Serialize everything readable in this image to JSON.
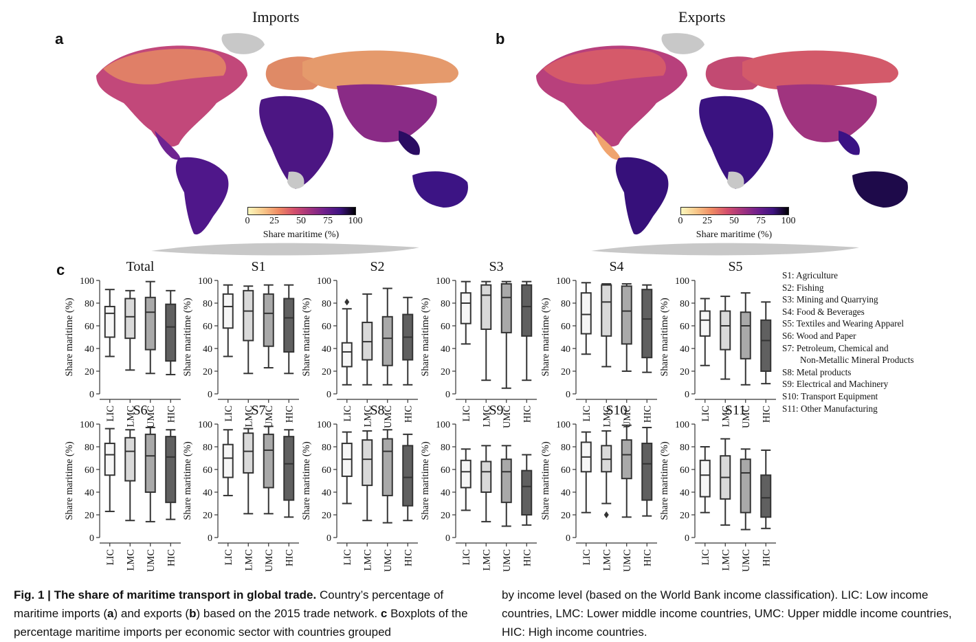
{
  "maps": {
    "imports": {
      "title": "Imports",
      "letter": "a"
    },
    "exports": {
      "title": "Exports",
      "letter": "b"
    },
    "colorbar": {
      "ticks": [
        "0",
        "25",
        "50",
        "75",
        "100"
      ],
      "label": "Share maritime (%)",
      "colors": [
        "#fcf8bd",
        "#f7c78a",
        "#ef8a63",
        "#d44f6c",
        "#a2337e",
        "#6f1f8c",
        "#3e1380",
        "#000004"
      ]
    }
  },
  "panel_c_letter": "c",
  "chart_data": {
    "type": "boxplot",
    "ylabel": "Share maritime (%)",
    "ylim": [
      0,
      100
    ],
    "yticks": [
      "0",
      "20",
      "40",
      "60",
      "80",
      "100"
    ],
    "categories": [
      "LIC",
      "LMC",
      "UMC",
      "HIC"
    ],
    "box_colors": [
      "#f6f6f6",
      "#d9d9d9",
      "#a9a9a9",
      "#606060"
    ],
    "panels": [
      {
        "title": "Total",
        "boxes": [
          {
            "whislo": 33,
            "q1": 50,
            "med": 71,
            "q3": 77,
            "whishi": 92
          },
          {
            "whislo": 21,
            "q1": 49,
            "med": 68,
            "q3": 84,
            "whishi": 91
          },
          {
            "whislo": 18,
            "q1": 39,
            "med": 72,
            "q3": 85,
            "whishi": 99
          },
          {
            "whislo": 17,
            "q1": 29,
            "med": 59,
            "q3": 79,
            "whishi": 91
          }
        ]
      },
      {
        "title": "S1",
        "boxes": [
          {
            "whislo": 33,
            "q1": 58,
            "med": 77,
            "q3": 88,
            "whishi": 96
          },
          {
            "whislo": 18,
            "q1": 47,
            "med": 73,
            "q3": 91,
            "whishi": 95
          },
          {
            "whislo": 23,
            "q1": 42,
            "med": 71,
            "q3": 88,
            "whishi": 96
          },
          {
            "whislo": 18,
            "q1": 37,
            "med": 67,
            "q3": 84,
            "whishi": 96
          }
        ]
      },
      {
        "title": "S2",
        "boxes": [
          {
            "whislo": 8,
            "q1": 24,
            "med": 37,
            "q3": 45,
            "whishi": 75,
            "fliers": [
              81
            ]
          },
          {
            "whislo": 8,
            "q1": 30,
            "med": 46,
            "q3": 63,
            "whishi": 88
          },
          {
            "whislo": 8,
            "q1": 25,
            "med": 49,
            "q3": 68,
            "whishi": 93
          },
          {
            "whislo": 8,
            "q1": 30,
            "med": 50,
            "q3": 70,
            "whishi": 85
          }
        ]
      },
      {
        "title": "S3",
        "boxes": [
          {
            "whislo": 44,
            "q1": 62,
            "med": 80,
            "q3": 89,
            "whishi": 99
          },
          {
            "whislo": 12,
            "q1": 57,
            "med": 87,
            "q3": 96,
            "whishi": 99
          },
          {
            "whislo": 5,
            "q1": 54,
            "med": 85,
            "q3": 97,
            "whishi": 99
          },
          {
            "whislo": 12,
            "q1": 51,
            "med": 77,
            "q3": 96,
            "whishi": 99
          }
        ]
      },
      {
        "title": "S4",
        "boxes": [
          {
            "whislo": 35,
            "q1": 53,
            "med": 70,
            "q3": 89,
            "whishi": 98
          },
          {
            "whislo": 24,
            "q1": 51,
            "med": 81,
            "q3": 96,
            "whishi": 97
          },
          {
            "whislo": 20,
            "q1": 44,
            "med": 73,
            "q3": 95,
            "whishi": 97
          },
          {
            "whislo": 19,
            "q1": 32,
            "med": 66,
            "q3": 92,
            "whishi": 96
          }
        ]
      },
      {
        "title": "S5",
        "boxes": [
          {
            "whislo": 25,
            "q1": 51,
            "med": 65,
            "q3": 73,
            "whishi": 84
          },
          {
            "whislo": 13,
            "q1": 39,
            "med": 60,
            "q3": 73,
            "whishi": 86
          },
          {
            "whislo": 8,
            "q1": 31,
            "med": 60,
            "q3": 72,
            "whishi": 89
          },
          {
            "whislo": 9,
            "q1": 20,
            "med": 47,
            "q3": 65,
            "whishi": 81
          }
        ]
      },
      {
        "title": "S6",
        "boxes": [
          {
            "whislo": 23,
            "q1": 55,
            "med": 73,
            "q3": 83,
            "whishi": 96
          },
          {
            "whislo": 15,
            "q1": 50,
            "med": 76,
            "q3": 88,
            "whishi": 95
          },
          {
            "whislo": 14,
            "q1": 40,
            "med": 72,
            "q3": 91,
            "whishi": 97
          },
          {
            "whislo": 16,
            "q1": 31,
            "med": 71,
            "q3": 89,
            "whishi": 95
          }
        ]
      },
      {
        "title": "S7",
        "boxes": [
          {
            "whislo": 37,
            "q1": 53,
            "med": 70,
            "q3": 82,
            "whishi": 95
          },
          {
            "whislo": 21,
            "q1": 57,
            "med": 76,
            "q3": 92,
            "whishi": 96
          },
          {
            "whislo": 21,
            "q1": 44,
            "med": 77,
            "q3": 91,
            "whishi": 98
          },
          {
            "whislo": 18,
            "q1": 33,
            "med": 65,
            "q3": 89,
            "whishi": 95
          }
        ]
      },
      {
        "title": "S8",
        "boxes": [
          {
            "whislo": 30,
            "q1": 54,
            "med": 69,
            "q3": 83,
            "whishi": 93
          },
          {
            "whislo": 15,
            "q1": 46,
            "med": 69,
            "q3": 86,
            "whishi": 94
          },
          {
            "whislo": 13,
            "q1": 37,
            "med": 76,
            "q3": 87,
            "whishi": 95
          },
          {
            "whislo": 15,
            "q1": 28,
            "med": 53,
            "q3": 81,
            "whishi": 91
          }
        ]
      },
      {
        "title": "S9",
        "boxes": [
          {
            "whislo": 24,
            "q1": 44,
            "med": 58,
            "q3": 68,
            "whishi": 78
          },
          {
            "whislo": 14,
            "q1": 40,
            "med": 58,
            "q3": 67,
            "whishi": 81
          },
          {
            "whislo": 10,
            "q1": 31,
            "med": 58,
            "q3": 69,
            "whishi": 81
          },
          {
            "whislo": 11,
            "q1": 20,
            "med": 45,
            "q3": 59,
            "whishi": 73
          }
        ]
      },
      {
        "title": "S10",
        "boxes": [
          {
            "whislo": 22,
            "q1": 58,
            "med": 71,
            "q3": 84,
            "whishi": 93
          },
          {
            "whislo": 30,
            "q1": 58,
            "med": 69,
            "q3": 81,
            "whishi": 94,
            "fliers": [
              20
            ]
          },
          {
            "whislo": 18,
            "q1": 52,
            "med": 73,
            "q3": 86,
            "whishi": 99
          },
          {
            "whislo": 19,
            "q1": 33,
            "med": 65,
            "q3": 83,
            "whishi": 97
          }
        ]
      },
      {
        "title": "S11",
        "boxes": [
          {
            "whislo": 22,
            "q1": 36,
            "med": 55,
            "q3": 68,
            "whishi": 80
          },
          {
            "whislo": 11,
            "q1": 34,
            "med": 53,
            "q3": 72,
            "whishi": 87
          },
          {
            "whislo": 7,
            "q1": 22,
            "med": 57,
            "q3": 69,
            "whishi": 78
          },
          {
            "whislo": 8,
            "q1": 18,
            "med": 35,
            "q3": 55,
            "whishi": 77
          }
        ]
      }
    ]
  },
  "legend": [
    {
      "text": "S1: Agriculture",
      "indent": false
    },
    {
      "text": "S2: Fishing",
      "indent": false
    },
    {
      "text": "S3: Mining and Quarrying",
      "indent": false
    },
    {
      "text": "S4: Food & Beverages",
      "indent": false
    },
    {
      "text": "S5: Textiles and Wearing Apparel",
      "indent": false
    },
    {
      "text": "S6: Wood and Paper",
      "indent": false
    },
    {
      "text": "S7: Petroleum, Chemical and",
      "indent": false
    },
    {
      "text": "Non-Metallic Mineral Products",
      "indent": true
    },
    {
      "text": "S8: Metal products",
      "indent": false
    },
    {
      "text": "S9: Electrical and Machinery",
      "indent": false
    },
    {
      "text": "S10: Transport Equipment",
      "indent": false
    },
    {
      "text": "S11: Other Manufacturing",
      "indent": false
    }
  ],
  "caption": {
    "label": "Fig. 1 | The share of maritime transport in global trade.",
    "col1": [
      {
        "t": " Country’s percentage of maritime imports (",
        "b": false
      },
      {
        "t": "a",
        "b": true
      },
      {
        "t": ") and exports (",
        "b": false
      },
      {
        "t": "b",
        "b": true
      },
      {
        "t": ") based on the 2015 trade network. ",
        "b": false
      },
      {
        "t": "c",
        "b": true
      },
      {
        "t": " Boxplots of the percentage maritime imports per economic sector with countries grouped",
        "b": false
      }
    ],
    "col2": "by income level (based on the World Bank income classification). LIC: Low income countries, LMC: Lower middle income countries, UMC: Upper middle income countries, HIC: High income countries."
  }
}
